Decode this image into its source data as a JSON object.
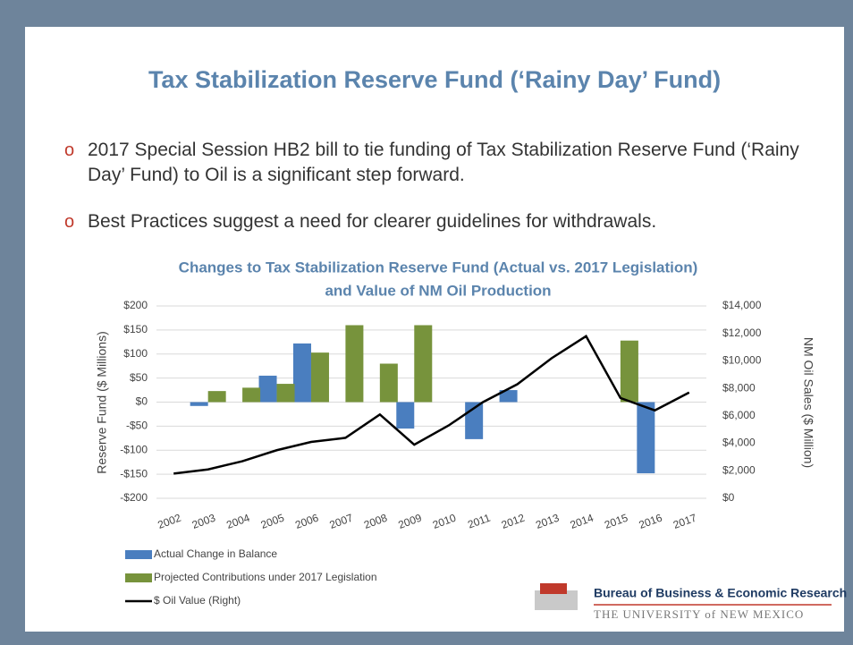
{
  "slide_title": "Tax Stabilization Reserve Fund (‘Rainy Day’ Fund)",
  "bullets": [
    "2017 Special Session HB2 bill to tie funding of Tax Stabilization Reserve Fund (‘Rainy Day’ Fund) to Oil is a significant step forward.",
    "Best Practices suggest a need for clearer guidelines for withdrawals."
  ],
  "logo": {
    "line1": "Bureau of Business & Economic Research",
    "line2": "THE UNIVERSITY of NEW MEXICO"
  },
  "chart_data": {
    "type": "bar",
    "title": [
      "Changes to Tax Stabilization Reserve Fund (Actual vs. 2017 Legislation)",
      "and Value of NM Oil Production"
    ],
    "y_label": "Reserve Fund ($ Millions)",
    "y2_label": "NM Oil Sales ($ Million)",
    "categories": [
      "2002",
      "2003",
      "2004",
      "2005",
      "2006",
      "2007",
      "2008",
      "2009",
      "2010",
      "2011",
      "2012",
      "2013",
      "2014",
      "2015",
      "2016",
      "2017"
    ],
    "series": [
      {
        "name": "Actual Change in Balance",
        "color": "#4a7ebf",
        "values": [
          null,
          -8,
          null,
          55,
          122,
          null,
          null,
          -55,
          null,
          -77,
          25,
          null,
          null,
          null,
          -148,
          null
        ]
      },
      {
        "name": "Projected Contributions under 2017 Legislation",
        "color": "#77933c",
        "values": [
          null,
          23,
          30,
          38,
          103,
          160,
          80,
          160,
          null,
          null,
          null,
          null,
          null,
          128,
          null,
          null
        ]
      },
      {
        "name": "$ Oil Value (Right)",
        "color": "#000000",
        "type": "line",
        "axis": "y2",
        "values": [
          1800,
          2100,
          2700,
          3500,
          4100,
          4400,
          6100,
          3900,
          5300,
          7000,
          8300,
          10200,
          11800,
          7300,
          6400,
          7700
        ]
      }
    ],
    "ylim": [
      -200,
      200
    ],
    "yticks": [
      {
        "value": -200,
        "label": "-$200"
      },
      {
        "value": -150,
        "label": "-$150"
      },
      {
        "value": -100,
        "label": "-$100"
      },
      {
        "value": -50,
        "label": "-$50"
      },
      {
        "value": 0,
        "label": "$0"
      },
      {
        "value": 50,
        "label": "$50"
      },
      {
        "value": 100,
        "label": "$100"
      },
      {
        "value": 150,
        "label": "$150"
      },
      {
        "value": 200,
        "label": "$200"
      }
    ],
    "y2lim": [
      0,
      14000
    ],
    "y2ticks": [
      {
        "value": 0,
        "label": "$0"
      },
      {
        "value": 2000,
        "label": "$2,000"
      },
      {
        "value": 4000,
        "label": "$4,000"
      },
      {
        "value": 6000,
        "label": "$6,000"
      },
      {
        "value": 8000,
        "label": "$8,000"
      },
      {
        "value": 10000,
        "label": "$10,000"
      },
      {
        "value": 12000,
        "label": "$12,000"
      },
      {
        "value": 14000,
        "label": "$14,000"
      }
    ],
    "grid": true,
    "legend": "bottom-left"
  }
}
